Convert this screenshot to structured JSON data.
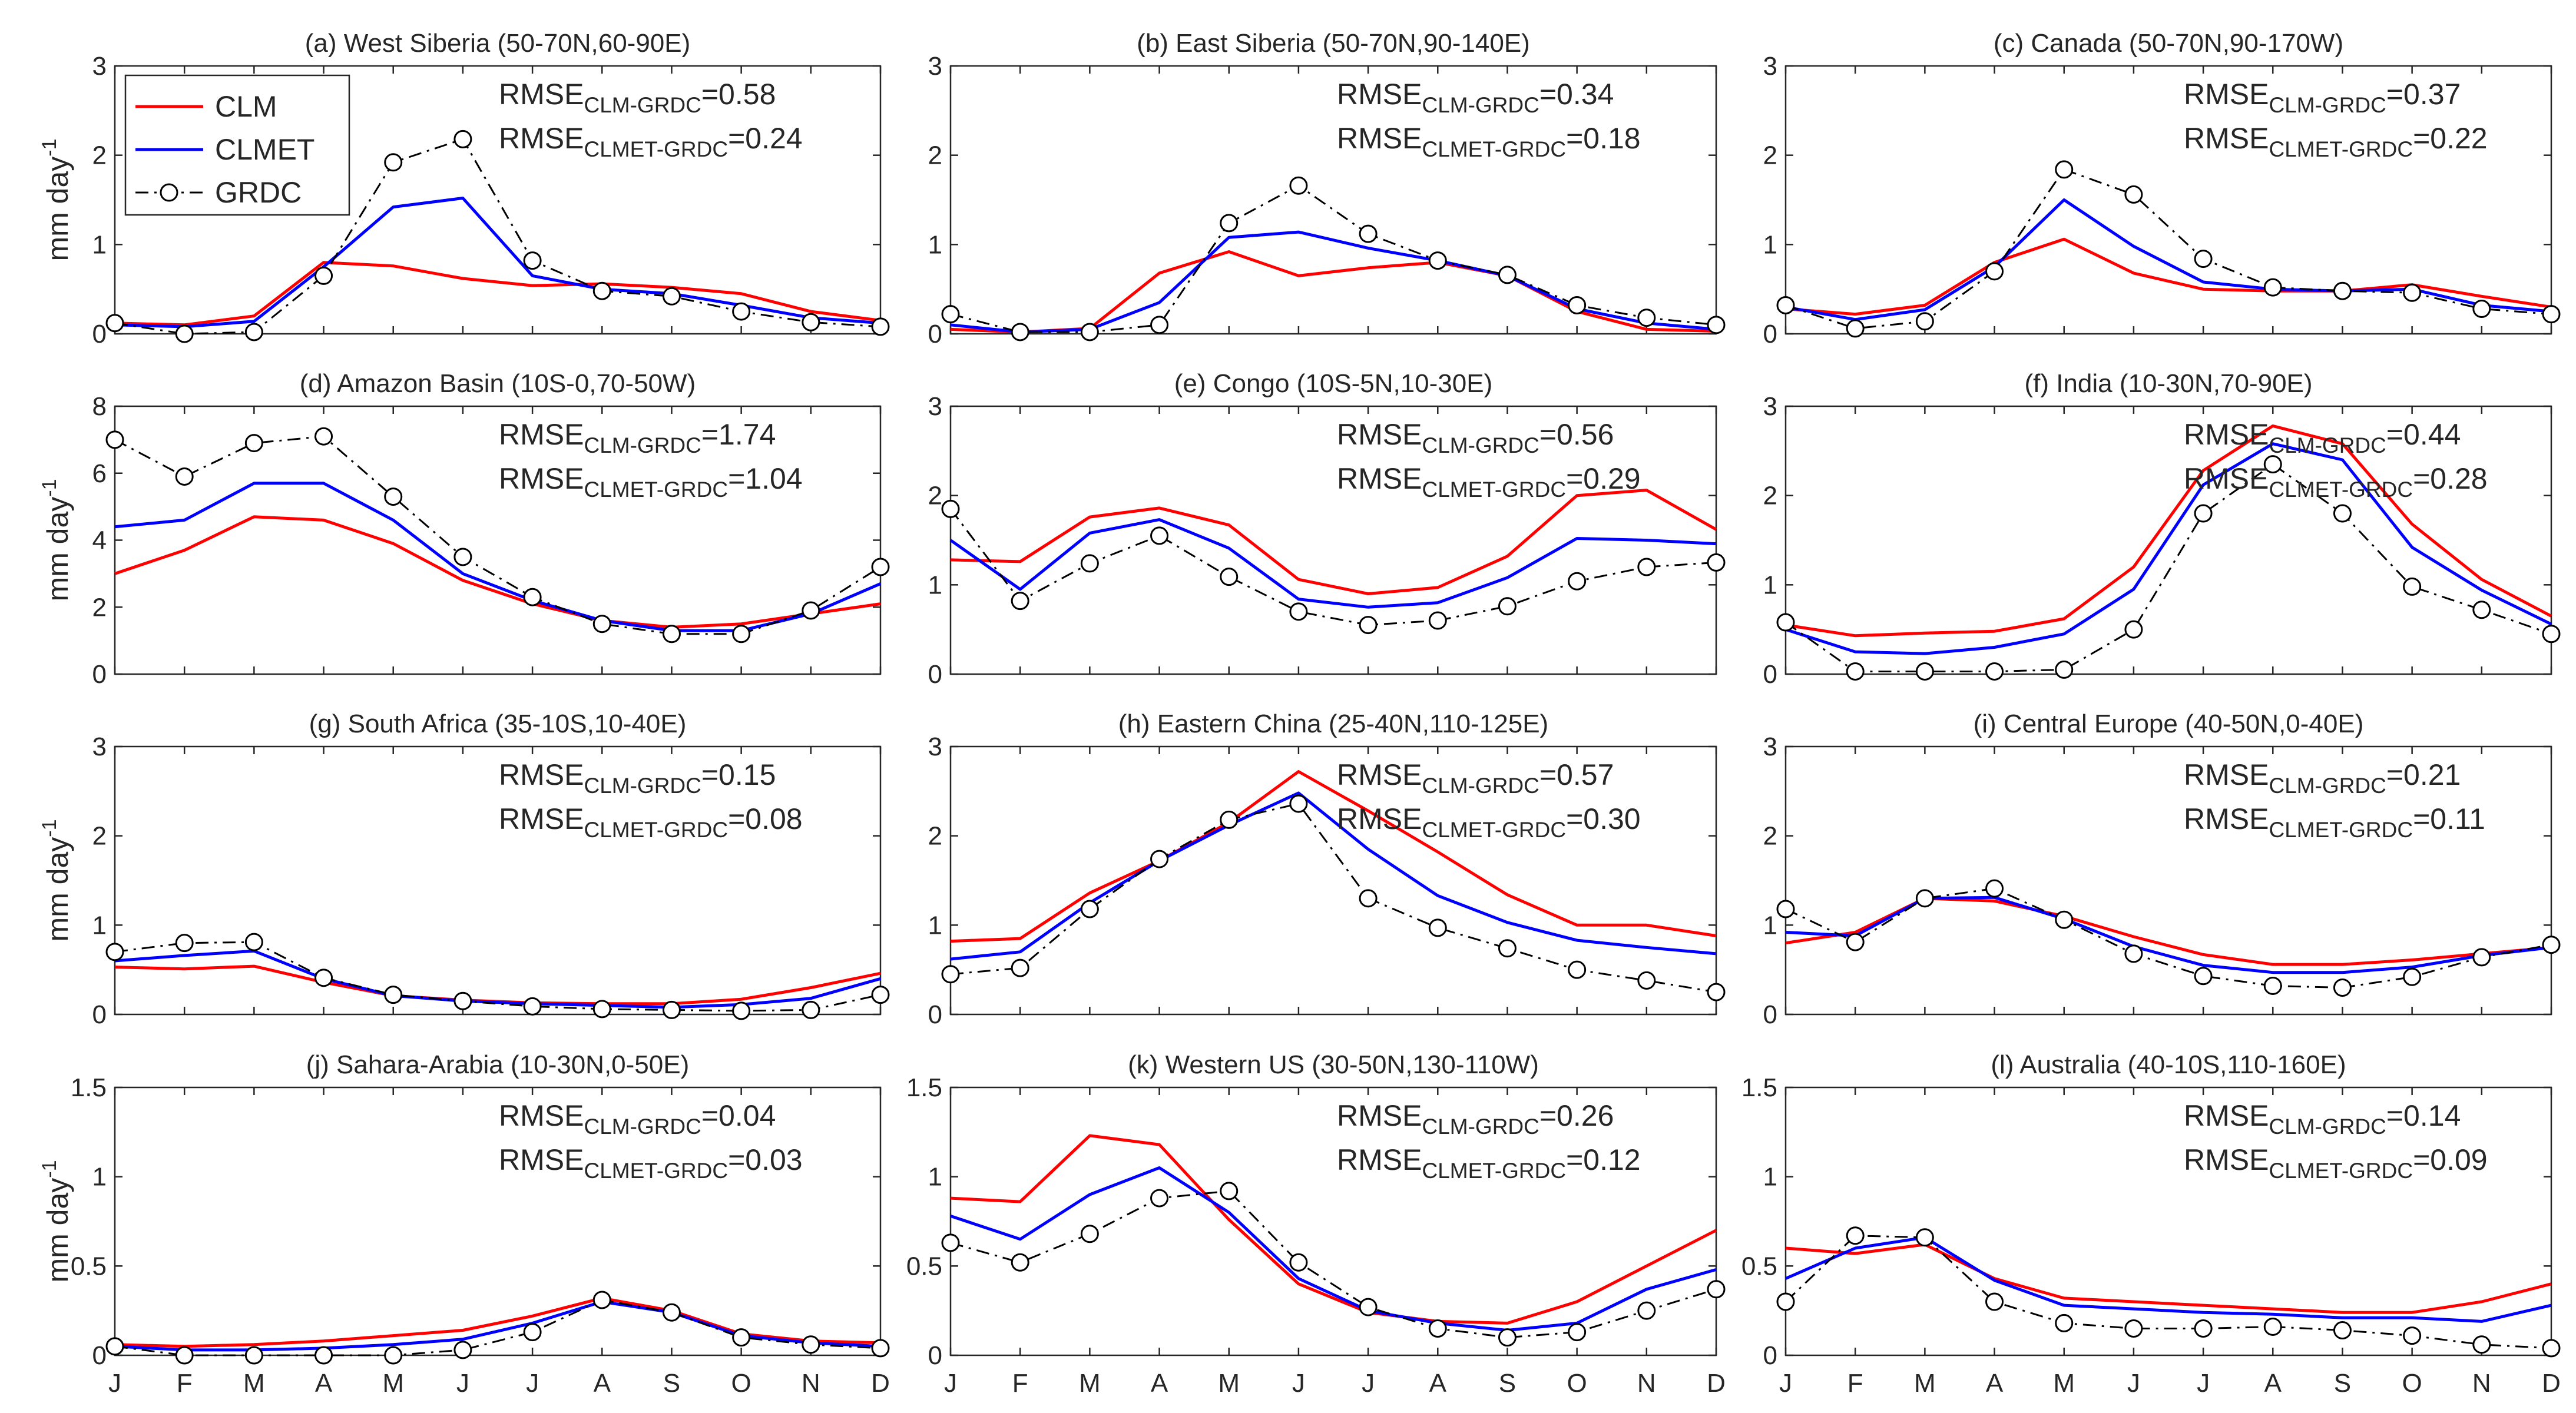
{
  "chart_data": {
    "type": "line",
    "months": [
      "J",
      "F",
      "M",
      "A",
      "M",
      "J",
      "J",
      "A",
      "S",
      "O",
      "N",
      "D"
    ],
    "ylabel": "mm day",
    "ylabel_sup": "-1",
    "legend": [
      {
        "name": "CLM",
        "color": "#ff0000",
        "style": "solid"
      },
      {
        "name": "CLMET",
        "color": "#0000ff",
        "style": "solid"
      },
      {
        "name": "GRDC",
        "color": "#000000",
        "style": "dash-dot with circles"
      }
    ],
    "rmse_label": "RMSE",
    "rmse_clm_sub": "CLM-GRDC",
    "rmse_clmet_sub": "CLMET-GRDC",
    "panels": [
      {
        "title": "(a) West Siberia (50-70N,60-90E)",
        "ylim": [
          0,
          3
        ],
        "yticks": [
          "0",
          "1",
          "2",
          "3"
        ],
        "rmse_clm": "=0.58",
        "rmse_clmet": "=0.24",
        "series": {
          "CLM": [
            0.12,
            0.1,
            0.2,
            0.8,
            0.76,
            0.62,
            0.54,
            0.56,
            0.52,
            0.45,
            0.25,
            0.15
          ],
          "CLMET": [
            0.1,
            0.08,
            0.14,
            0.75,
            1.42,
            1.52,
            0.65,
            0.5,
            0.45,
            0.32,
            0.18,
            0.12
          ],
          "GRDC": [
            0.12,
            0.0,
            0.02,
            0.65,
            1.92,
            2.18,
            0.82,
            0.48,
            0.42,
            0.25,
            0.13,
            0.08
          ]
        }
      },
      {
        "title": "(b) East Siberia (50-70N,90-140E)",
        "ylim": [
          0,
          3
        ],
        "yticks": [
          "0",
          "1",
          "2",
          "3"
        ],
        "rmse_clm": "=0.34",
        "rmse_clmet": "=0.18",
        "series": {
          "CLM": [
            0.05,
            0.02,
            0.06,
            0.68,
            0.92,
            0.65,
            0.74,
            0.8,
            0.65,
            0.25,
            0.05,
            0.03
          ],
          "CLMET": [
            0.1,
            0.02,
            0.05,
            0.35,
            1.08,
            1.14,
            0.96,
            0.82,
            0.65,
            0.28,
            0.12,
            0.05
          ],
          "GRDC": [
            0.22,
            0.02,
            0.02,
            0.1,
            1.24,
            1.66,
            1.12,
            0.82,
            0.66,
            0.32,
            0.18,
            0.1
          ]
        }
      },
      {
        "title": "(c) Canada (50-70N,90-170W)",
        "ylim": [
          0,
          3
        ],
        "yticks": [
          "0",
          "1",
          "2",
          "3"
        ],
        "rmse_clm": "=0.37",
        "rmse_clmet": "=0.22",
        "series": {
          "CLM": [
            0.28,
            0.22,
            0.32,
            0.8,
            1.06,
            0.68,
            0.5,
            0.48,
            0.48,
            0.55,
            0.42,
            0.3
          ],
          "CLMET": [
            0.3,
            0.16,
            0.27,
            0.75,
            1.5,
            0.98,
            0.58,
            0.5,
            0.48,
            0.5,
            0.32,
            0.25
          ],
          "GRDC": [
            0.32,
            0.06,
            0.14,
            0.7,
            1.84,
            1.56,
            0.84,
            0.52,
            0.48,
            0.46,
            0.28,
            0.22
          ]
        }
      },
      {
        "title": "(d) Amazon Basin (10S-0,70-50W)",
        "ylim": [
          0,
          8
        ],
        "yticks": [
          "0",
          "2",
          "4",
          "6",
          "8"
        ],
        "rmse_clm": "=1.74",
        "rmse_clmet": "=1.04",
        "series": {
          "CLM": [
            3.0,
            3.7,
            4.7,
            4.6,
            3.9,
            2.8,
            2.1,
            1.6,
            1.4,
            1.5,
            1.8,
            2.1
          ],
          "CLMET": [
            4.4,
            4.6,
            5.7,
            5.7,
            4.6,
            3.0,
            2.2,
            1.6,
            1.3,
            1.3,
            1.8,
            2.7
          ],
          "GRDC": [
            7.0,
            5.9,
            6.9,
            7.1,
            5.3,
            3.5,
            2.3,
            1.5,
            1.2,
            1.2,
            1.9,
            3.2
          ]
        }
      },
      {
        "title": "(e) Congo (10S-5N,10-30E)",
        "ylim": [
          0,
          3
        ],
        "yticks": [
          "0",
          "1",
          "2",
          "3"
        ],
        "rmse_clm": "=0.56",
        "rmse_clmet": "=0.29",
        "series": {
          "CLM": [
            1.28,
            1.26,
            1.76,
            1.86,
            1.67,
            1.06,
            0.9,
            0.97,
            1.32,
            2.0,
            2.06,
            1.62
          ],
          "CLMET": [
            1.5,
            0.95,
            1.58,
            1.73,
            1.41,
            0.84,
            0.75,
            0.8,
            1.08,
            1.52,
            1.5,
            1.46
          ],
          "GRDC": [
            1.85,
            0.82,
            1.24,
            1.55,
            1.09,
            0.7,
            0.55,
            0.6,
            0.76,
            1.04,
            1.2,
            1.25
          ]
        }
      },
      {
        "title": "(f) India (10-30N,70-90E)",
        "ylim": [
          0,
          3
        ],
        "yticks": [
          "0",
          "1",
          "2",
          "3"
        ],
        "rmse_clm": "=0.44",
        "rmse_clmet": "=0.28",
        "series": {
          "CLM": [
            0.55,
            0.43,
            0.46,
            0.48,
            0.62,
            1.2,
            2.28,
            2.78,
            2.58,
            1.68,
            1.06,
            0.65
          ],
          "CLMET": [
            0.5,
            0.25,
            0.23,
            0.3,
            0.45,
            0.95,
            2.12,
            2.58,
            2.4,
            1.42,
            0.94,
            0.56
          ],
          "GRDC": [
            0.58,
            0.03,
            0.03,
            0.03,
            0.05,
            0.5,
            1.8,
            2.35,
            1.8,
            0.98,
            0.72,
            0.45
          ]
        }
      },
      {
        "title": "(g) South Africa (35-10S,10-40E)",
        "ylim": [
          0,
          3
        ],
        "yticks": [
          "0",
          "1",
          "2",
          "3"
        ],
        "rmse_clm": "=0.15",
        "rmse_clmet": "=0.08",
        "series": {
          "CLM": [
            0.53,
            0.51,
            0.54,
            0.36,
            0.21,
            0.16,
            0.13,
            0.12,
            0.12,
            0.17,
            0.3,
            0.46
          ],
          "CLMET": [
            0.6,
            0.66,
            0.71,
            0.4,
            0.21,
            0.15,
            0.12,
            0.1,
            0.08,
            0.11,
            0.18,
            0.4
          ],
          "GRDC": [
            0.7,
            0.8,
            0.81,
            0.41,
            0.22,
            0.15,
            0.09,
            0.06,
            0.05,
            0.04,
            0.05,
            0.22
          ]
        }
      },
      {
        "title": "(h) Eastern China (25-40N,110-125E)",
        "ylim": [
          0,
          3
        ],
        "yticks": [
          "0",
          "1",
          "2",
          "3"
        ],
        "rmse_clm": "=0.57",
        "rmse_clmet": "=0.30",
        "series": {
          "CLM": [
            0.82,
            0.85,
            1.36,
            1.72,
            2.15,
            2.72,
            2.28,
            1.82,
            1.34,
            1.0,
            1.0,
            0.88
          ],
          "CLMET": [
            0.62,
            0.7,
            1.25,
            1.72,
            2.12,
            2.48,
            1.85,
            1.33,
            1.03,
            0.83,
            0.75,
            0.68
          ],
          "GRDC": [
            0.45,
            0.52,
            1.18,
            1.74,
            2.18,
            2.36,
            1.3,
            0.97,
            0.74,
            0.5,
            0.38,
            0.25
          ]
        }
      },
      {
        "title": "(i) Central Europe  (40-50N,0-40E)",
        "ylim": [
          0,
          3
        ],
        "yticks": [
          "0",
          "1",
          "2",
          "3"
        ],
        "rmse_clm": "=0.21",
        "rmse_clmet": "=0.11",
        "series": {
          "CLM": [
            0.8,
            0.92,
            1.3,
            1.27,
            1.1,
            0.87,
            0.67,
            0.56,
            0.56,
            0.61,
            0.68,
            0.75
          ],
          "CLMET": [
            0.92,
            0.88,
            1.3,
            1.31,
            1.07,
            0.76,
            0.55,
            0.47,
            0.47,
            0.53,
            0.66,
            0.75
          ],
          "GRDC": [
            1.18,
            0.81,
            1.3,
            1.41,
            1.06,
            0.68,
            0.43,
            0.32,
            0.3,
            0.42,
            0.64,
            0.78
          ]
        }
      },
      {
        "title": "(j) Sahara-Arabia (10-30N,0-50E)",
        "ylim": [
          0,
          1.5
        ],
        "yticks": [
          "0",
          "0.5",
          "1",
          "1.5"
        ],
        "rmse_clm": "=0.04",
        "rmse_clmet": "=0.03",
        "series": {
          "CLM": [
            0.06,
            0.05,
            0.06,
            0.08,
            0.11,
            0.14,
            0.22,
            0.32,
            0.25,
            0.12,
            0.08,
            0.07
          ],
          "CLMET": [
            0.05,
            0.03,
            0.03,
            0.04,
            0.06,
            0.09,
            0.18,
            0.3,
            0.24,
            0.11,
            0.07,
            0.05
          ],
          "GRDC": [
            0.05,
            0.0,
            0.0,
            0.0,
            0.0,
            0.03,
            0.13,
            0.31,
            0.24,
            0.1,
            0.06,
            0.04
          ]
        }
      },
      {
        "title": "(k) Western US (30-50N,130-110W)",
        "ylim": [
          0,
          1.5
        ],
        "yticks": [
          "0",
          "0.5",
          "1",
          "1.5"
        ],
        "rmse_clm": "=0.26",
        "rmse_clmet": "=0.12",
        "series": {
          "CLM": [
            0.88,
            0.86,
            1.23,
            1.18,
            0.76,
            0.4,
            0.24,
            0.19,
            0.18,
            0.3,
            0.5,
            0.7
          ],
          "CLMET": [
            0.78,
            0.65,
            0.9,
            1.05,
            0.8,
            0.43,
            0.25,
            0.18,
            0.14,
            0.18,
            0.37,
            0.48
          ],
          "GRDC": [
            0.63,
            0.52,
            0.68,
            0.88,
            0.92,
            0.52,
            0.27,
            0.15,
            0.1,
            0.13,
            0.25,
            0.37
          ]
        }
      },
      {
        "title": "(l) Australia (40-10S,110-160E)",
        "ylim": [
          0,
          1.5
        ],
        "yticks": [
          "0",
          "0.5",
          "1",
          "1.5"
        ],
        "rmse_clm": "=0.14",
        "rmse_clmet": "=0.09",
        "series": {
          "CLM": [
            0.6,
            0.57,
            0.62,
            0.43,
            0.32,
            0.3,
            0.28,
            0.26,
            0.24,
            0.24,
            0.3,
            0.4
          ],
          "CLMET": [
            0.43,
            0.6,
            0.66,
            0.42,
            0.28,
            0.26,
            0.24,
            0.23,
            0.21,
            0.21,
            0.19,
            0.28
          ],
          "GRDC": [
            0.3,
            0.67,
            0.66,
            0.3,
            0.18,
            0.15,
            0.15,
            0.16,
            0.14,
            0.11,
            0.06,
            0.04
          ]
        }
      }
    ]
  }
}
